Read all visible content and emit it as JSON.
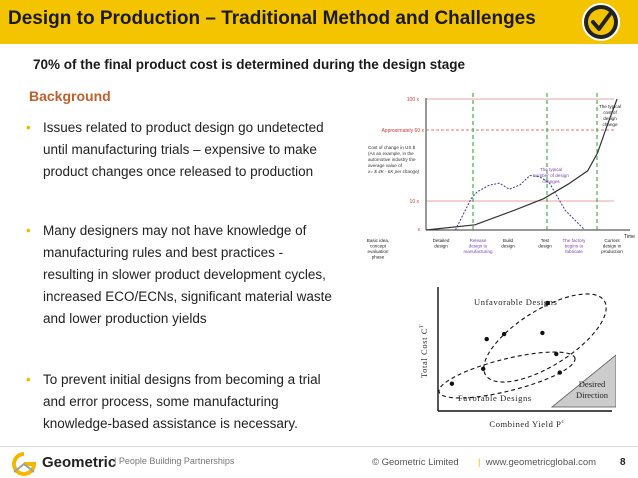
{
  "header": {
    "title": "Design to Production – Traditional Method and Challenges"
  },
  "subtitle": "70% of the final product cost is determined during the design stage",
  "section_title": "Background",
  "bullets": [
    [
      "Issues related to product design go undetected",
      "until manufacturing trials – expensive to make",
      "product changes once released to production"
    ],
    [
      "Many designers may not have knowledge of",
      "manufacturing rules and best practices  -",
      "resulting in slower product development cycles,",
      "increased ECO/ECNs, significant material waste",
      "and lower production yields"
    ],
    [
      "To prevent initial designs from becoming a trial",
      "and error process, some manufacturing",
      "knowledge-based assistance is necessary."
    ]
  ],
  "chart_data": [
    {
      "type": "line",
      "y_tick_labels": [
        "100 x",
        "Approximately 60 x",
        "10 x",
        "x"
      ],
      "y_annotation": [
        "Cost of change in US $",
        "(As an example, in the",
        "automotive industry the",
        "average value of",
        "x= $ 4K - 6K per change)"
      ],
      "x_label": "Time",
      "x_stage_labels": [
        [
          "Basic idea,",
          "concept",
          "evaluation",
          "phase"
        ],
        [
          "Detailed",
          "design"
        ],
        [
          "Release",
          "design to",
          "manufacturing"
        ],
        [
          "Build",
          "design"
        ],
        [
          "Test",
          "design"
        ],
        [
          "The factory",
          "begins to",
          "fabricate"
        ],
        [
          "Current",
          "design in",
          "production"
        ]
      ],
      "callouts": {
        "cost_of_change": [
          "The typical",
          "cost of",
          "design",
          "change"
        ],
        "design_changes": [
          "The typical",
          "number of design",
          "changes"
        ]
      },
      "series": [
        {
          "values": [
            [
              0,
              1
            ],
            [
              5,
              1.2
            ],
            [
              9,
              2
            ],
            [
              12,
              3
            ],
            [
              14.5,
              5
            ],
            [
              16.5,
              8
            ],
            [
              17.5,
              15
            ],
            [
              18.5,
              40
            ],
            [
              19.5,
              100
            ]
          ],
          "color": "#333333"
        },
        {
          "values": [
            [
              3,
              1
            ],
            [
              4.6,
              3
            ],
            [
              5.2,
              3.8
            ],
            [
              6.4,
              4.8
            ],
            [
              7.5,
              5.2
            ],
            [
              8.5,
              4.2
            ],
            [
              9.6,
              4.9
            ],
            [
              10.6,
              6.8
            ],
            [
              11.6,
              6.5
            ],
            [
              12.6,
              5.2
            ],
            [
              14.2,
              2
            ],
            [
              16.2,
              1
            ]
          ],
          "color": "#3b3b8a"
        }
      ],
      "colors": {
        "stage_dashes": "#3aa63a",
        "approx_line": "#d24a4a",
        "callouts": "#7a3fb3"
      }
    },
    {
      "type": "scatter",
      "xlabel": "Combined Yield P",
      "xlabel_superscript": "c",
      "ylabel": "Total Cost C",
      "ylabel_superscript": "T",
      "groups": [
        {
          "name": "Unfavorable Designs",
          "points": [
            [
              0.28,
              0.58
            ],
            [
              0.38,
              0.62
            ],
            [
              0.6,
              0.63
            ],
            [
              0.63,
              0.87
            ],
            [
              0.68,
              0.46
            ]
          ]
        },
        {
          "name": "Favorable Designs",
          "points": [
            [
              0.08,
              0.22
            ],
            [
              0.26,
              0.34
            ],
            [
              0.7,
              0.31
            ]
          ]
        }
      ],
      "direction_label": [
        "Desired",
        "Direction"
      ]
    }
  ],
  "footer": {
    "logo": "Geometric",
    "tagline": "| People Building Partnerships",
    "copyright": "© Geometric Limited",
    "separator": "|",
    "website": "www.geometricglobal.com",
    "page_number": "8"
  }
}
